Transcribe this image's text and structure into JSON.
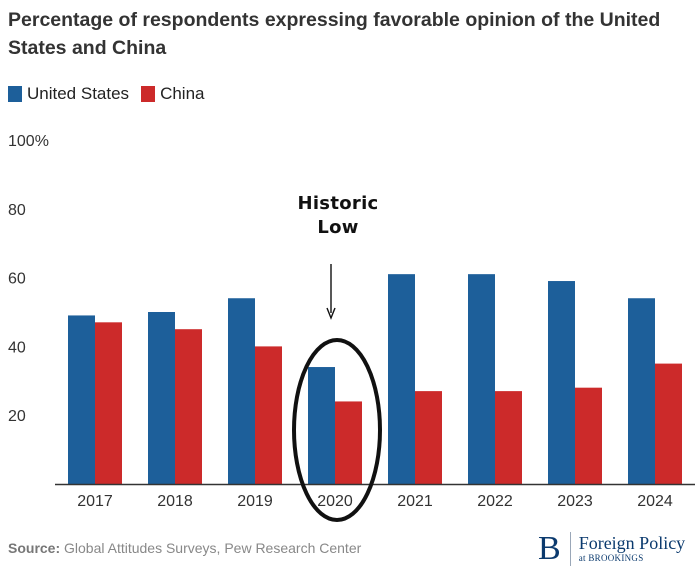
{
  "colors": {
    "us": "#1d5f9a",
    "china": "#cc2a2a",
    "axis_text": "#333333",
    "baseline": "#333333",
    "annotation": "#111111"
  },
  "chart_data": {
    "type": "bar",
    "title": "Percentage of respondents expressing favorable opinion of the United States and China",
    "categories": [
      "2017",
      "2018",
      "2019",
      "2020",
      "2021",
      "2022",
      "2023",
      "2024"
    ],
    "series": [
      {
        "name": "United States",
        "values": [
          49,
          50,
          54,
          34,
          61,
          61,
          59,
          54
        ]
      },
      {
        "name": "China",
        "values": [
          47,
          45,
          40,
          24,
          27,
          27,
          28,
          35
        ]
      }
    ],
    "yticks": [
      "20",
      "40",
      "60",
      "80",
      "100%"
    ],
    "ytick_values": [
      20,
      40,
      60,
      80,
      100
    ],
    "ylim": [
      0,
      100
    ],
    "xlabel": "",
    "ylabel": "",
    "legend": "top-left",
    "annotation": {
      "line1": "Historic",
      "line2": "Low",
      "category": "2020"
    }
  },
  "footer": {
    "source_label": "Source:",
    "source_text": " Global Attitudes Surveys, Pew Research Center"
  },
  "brand": {
    "initial": "B",
    "name": "Foreign Policy",
    "sub": "at BROOKINGS"
  }
}
